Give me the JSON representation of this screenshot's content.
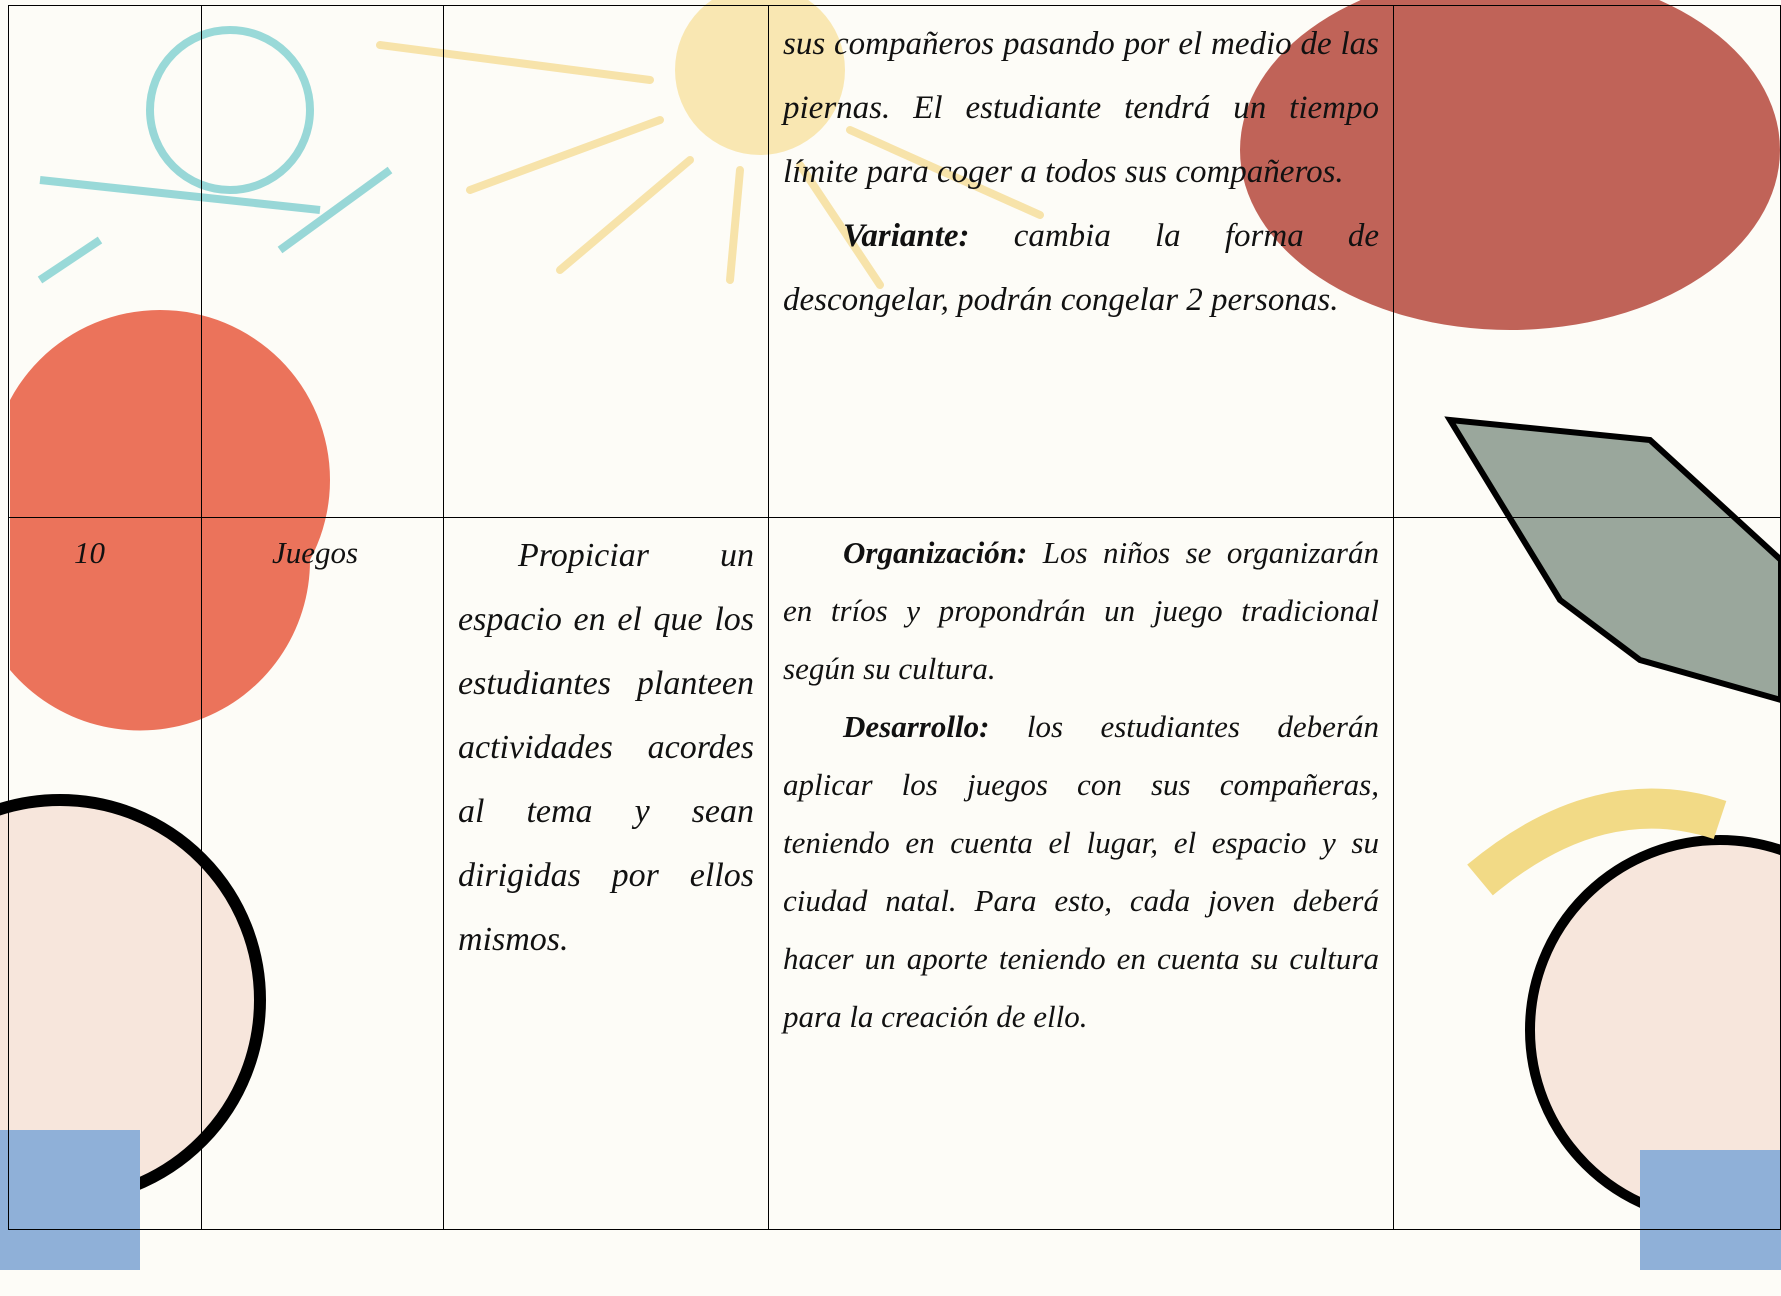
{
  "table": {
    "rows": [
      {
        "activity": {
          "paragraphs": [
            {
              "text": "sus compañeros pasando por el medio de las piernas. El estudiante tendrá un tiempo límite para coger a todos sus compañeros."
            },
            {
              "label": "Variante:",
              "text": "cambia la forma de descongelar, podrán congelar 2 personas."
            }
          ]
        }
      },
      {
        "number": 10,
        "topic": "Juegos",
        "objective": "Propiciar un espacio en el que los estudiantes planteen actividades acordes al tema y sean dirigidas por ellos mismos.",
        "activity": {
          "paragraphs": [
            {
              "label": "Organización:",
              "text": "Los niños se organizarán en tríos y propondrán un juego tradicional según su cultura."
            },
            {
              "label": "Desarrollo:",
              "text": "los estudiantes deberán aplicar los juegos con sus compañeras, teniendo en cuenta el lugar, el espacio y su ciudad natal. Para esto, cada joven deberá hacer un aporte teniendo en cuenta su cultura para la creación de ello."
            }
          ]
        }
      }
    ]
  }
}
